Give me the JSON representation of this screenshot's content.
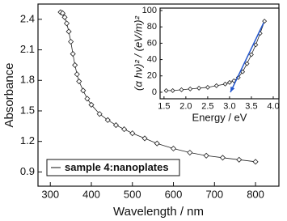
{
  "chart_data": [
    {
      "type": "line",
      "marker": "diamond",
      "color": "#222222",
      "x_label": "Wavelength / nm",
      "y_label": "Absorbance",
      "x": [
        325,
        330,
        335,
        340,
        345,
        350,
        355,
        360,
        365,
        370,
        380,
        390,
        400,
        420,
        440,
        460,
        480,
        500,
        530,
        560,
        600,
        640,
        680,
        720,
        760,
        800
      ],
      "y": [
        2.47,
        2.46,
        2.42,
        2.36,
        2.28,
        2.18,
        2.06,
        1.95,
        1.86,
        1.79,
        1.7,
        1.62,
        1.56,
        1.47,
        1.41,
        1.36,
        1.32,
        1.28,
        1.23,
        1.18,
        1.13,
        1.09,
        1.06,
        1.04,
        1.02,
        1.0
      ],
      "xlim": [
        270,
        857
      ],
      "ylim": [
        0.76,
        2.55
      ],
      "xticks": [
        300,
        400,
        500,
        600,
        700,
        800
      ],
      "yticks": [
        0.9,
        1.2,
        1.5,
        1.8,
        2.1,
        2.4
      ],
      "annotation": "sample 4:nanoplates"
    },
    {
      "type": "line",
      "marker": "diamond",
      "color": "#222222",
      "x_label": "Energy / eV",
      "y_label": "(α hν)² / (eV/m)²",
      "x": [
        1.55,
        1.7,
        1.9,
        2.1,
        2.3,
        2.5,
        2.7,
        2.9,
        3.0,
        3.1,
        3.2,
        3.3,
        3.4,
        3.5,
        3.6,
        3.7,
        3.8
      ],
      "y": [
        2,
        2,
        3,
        4,
        5,
        6,
        8,
        10,
        12,
        14,
        18,
        25,
        35,
        46,
        58,
        72,
        87
      ],
      "xlim": [
        1.41,
        4.13
      ],
      "ylim": [
        -8,
        103
      ],
      "xticks": [
        1.5,
        {
          "value": 2,
          "label": "2.0"
        },
        2.5,
        {
          "value": 3,
          "label": "3.0"
        },
        3.5,
        {
          "value": 4,
          "label": "4.0"
        }
      ],
      "yticks": [
        0,
        20,
        40,
        60,
        80,
        100
      ],
      "fit_line": {
        "color": "#2255cc",
        "x": [
          3.78,
          3.02
        ],
        "y": [
          85,
          0
        ]
      }
    }
  ]
}
